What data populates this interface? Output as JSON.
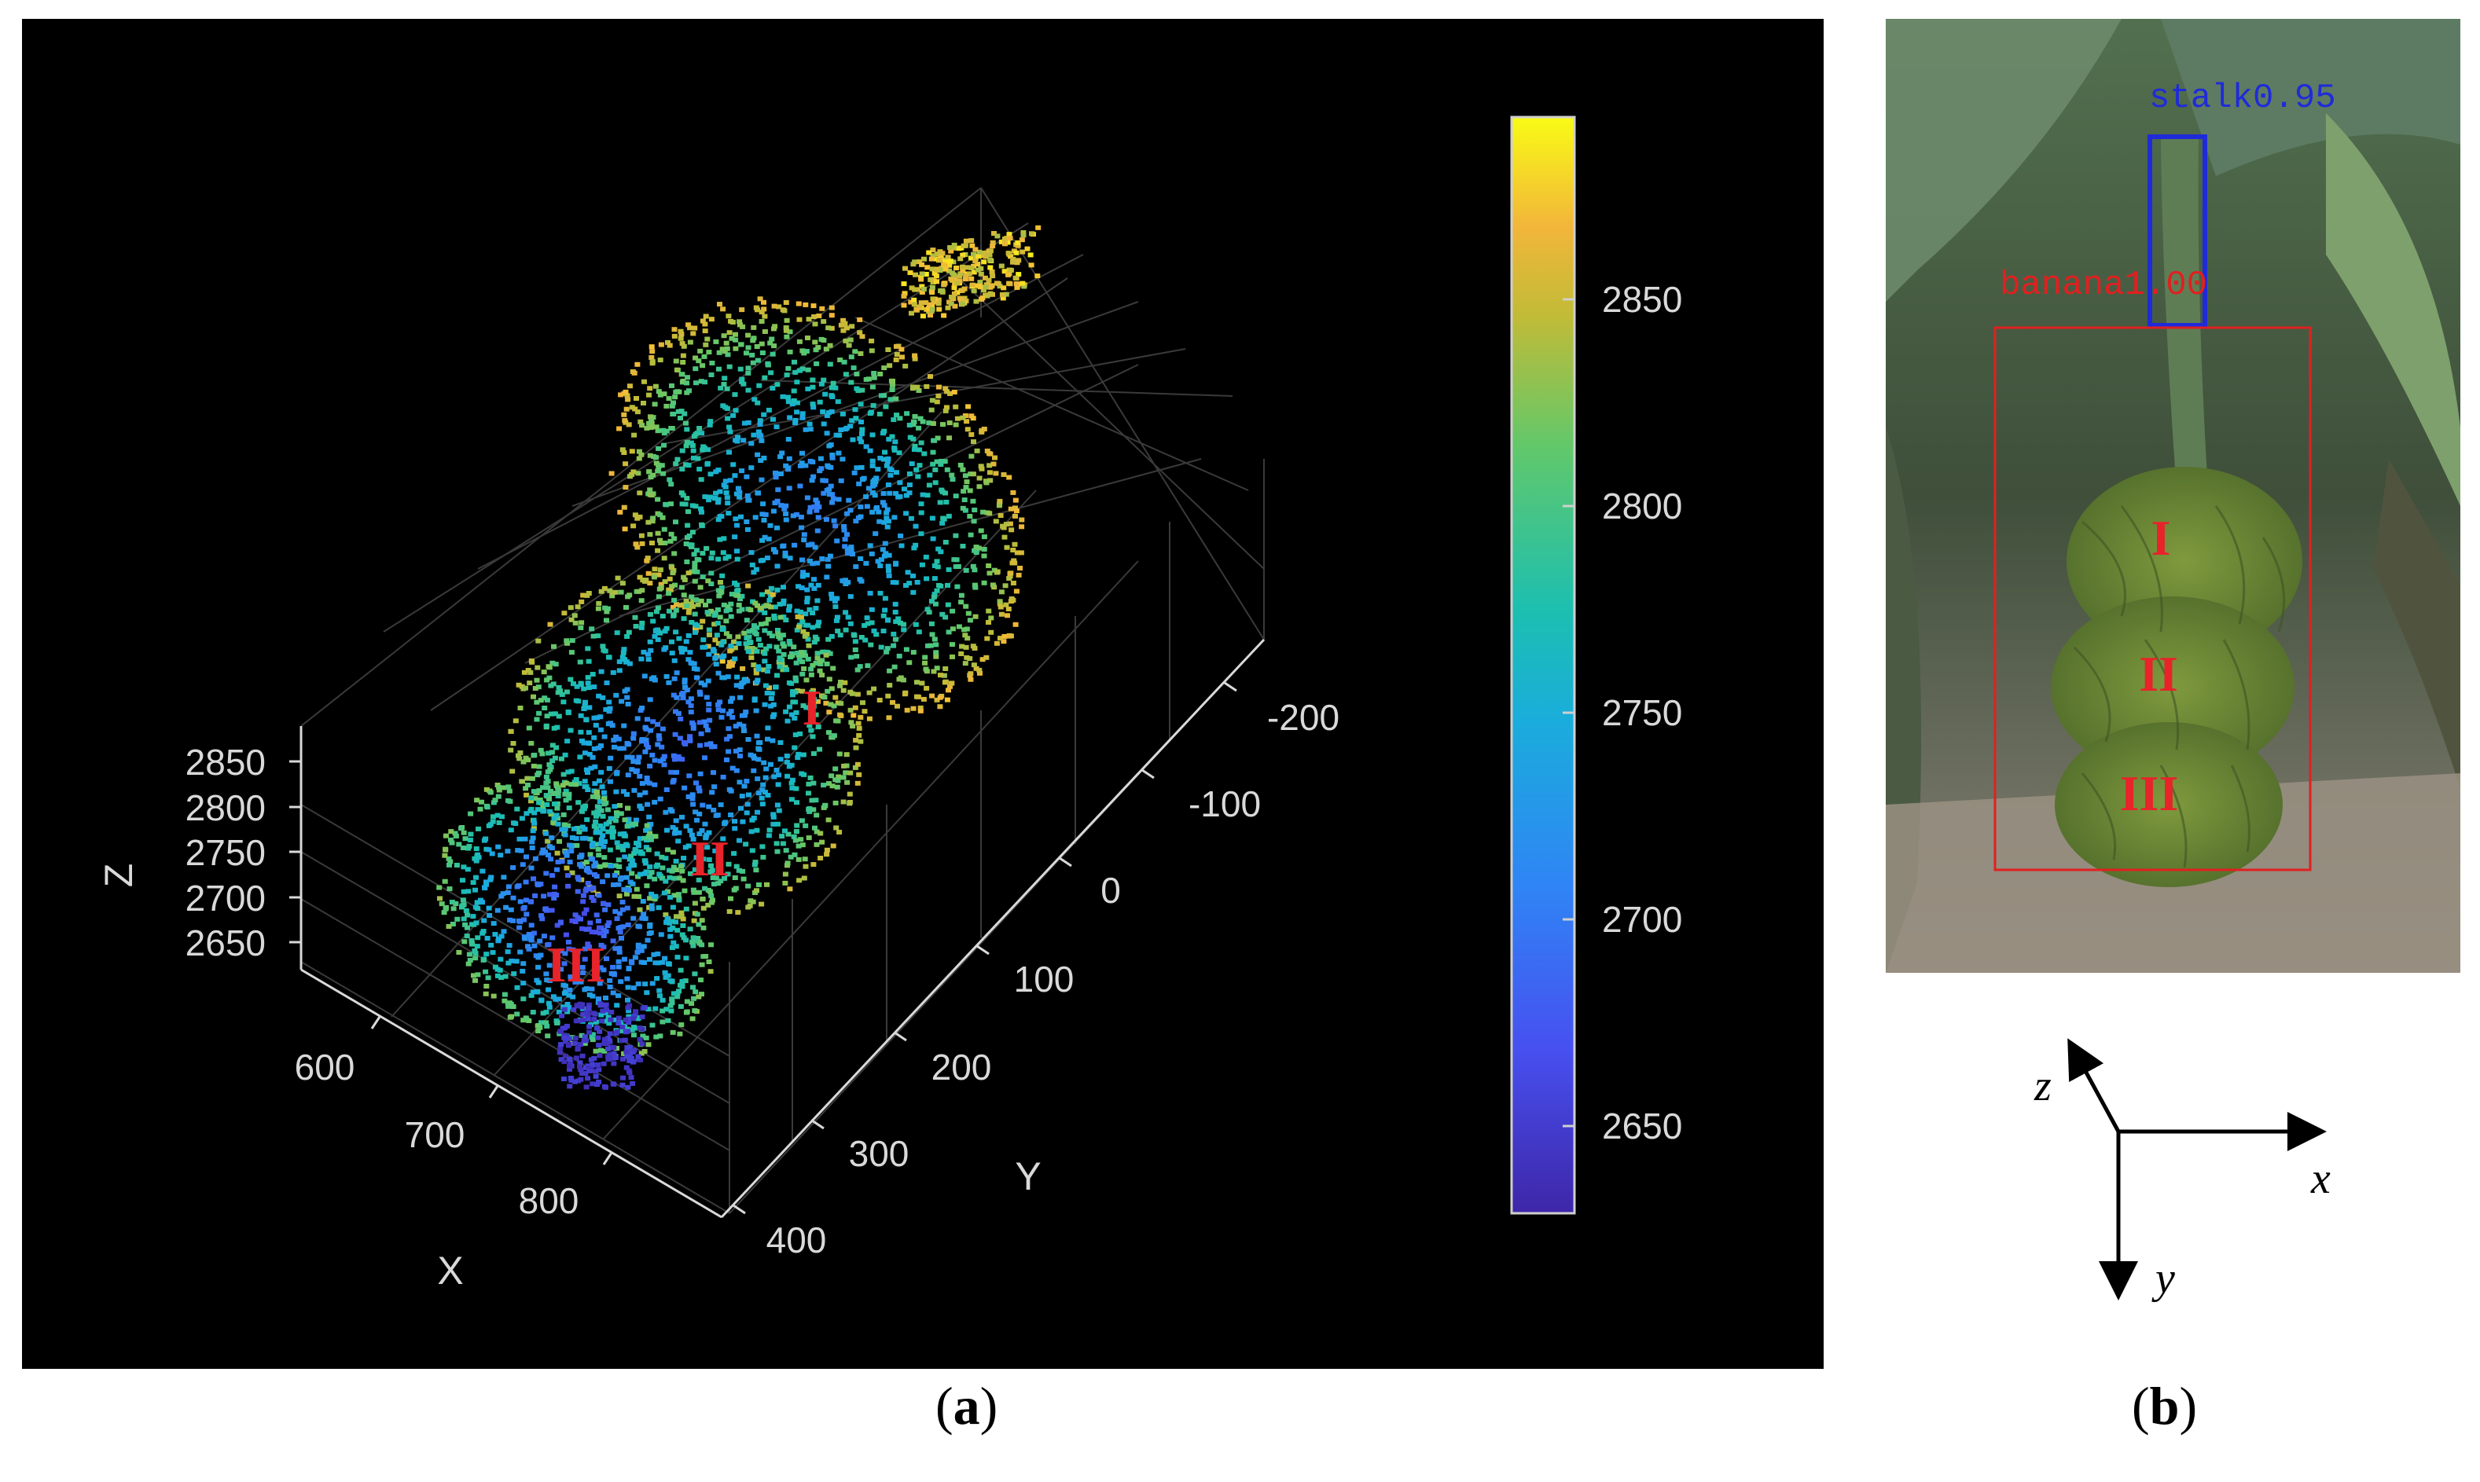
{
  "panel_a": {
    "caption_letter": "a",
    "tick_color": "#d9d9d9",
    "region_label_color": "#e8232a",
    "region_labels": [
      "I",
      "II",
      "III"
    ],
    "axes": {
      "x": {
        "label": "X",
        "ticks": [
          "600",
          "700",
          "800"
        ]
      },
      "y": {
        "label": "Y",
        "ticks": [
          "-200",
          "-100",
          "0",
          "100",
          "200",
          "300",
          "400"
        ]
      },
      "z": {
        "label": "Z",
        "ticks": [
          "2850",
          "2800",
          "2750",
          "2700",
          "2650"
        ]
      }
    },
    "colorbar": {
      "colormap": "parula",
      "ticks": [
        "2850",
        "2800",
        "2750",
        "2700",
        "2650"
      ],
      "range": [
        2630,
        2895
      ]
    }
  },
  "panel_b": {
    "caption_letter": "b",
    "detections": [
      {
        "label": "stalk0.95",
        "color": "#1f2bd8"
      },
      {
        "label": "banana1.00",
        "color": "#e02020"
      }
    ],
    "region_labels": [
      "I",
      "II",
      "III"
    ],
    "region_label_color": "#e8232a",
    "axis_labels": [
      "z",
      "x",
      "y"
    ]
  },
  "chart_data": {
    "type": "scatter",
    "subtype": "3d point cloud colored by Z",
    "xlabel": "X",
    "ylabel": "Y",
    "zlabel": "Z",
    "xlim": [
      550,
      850
    ],
    "ylim": [
      -250,
      400
    ],
    "zlim": [
      2630,
      2880
    ],
    "x_ticks": [
      600,
      700,
      800
    ],
    "y_ticks": [
      -200,
      -100,
      0,
      100,
      200,
      300,
      400
    ],
    "z_ticks": [
      2650,
      2700,
      2750,
      2800,
      2850
    ],
    "colorbar_ticks": [
      2650,
      2700,
      2750,
      2800,
      2850
    ],
    "grid": true,
    "annotations": [
      "I",
      "II",
      "III"
    ]
  }
}
